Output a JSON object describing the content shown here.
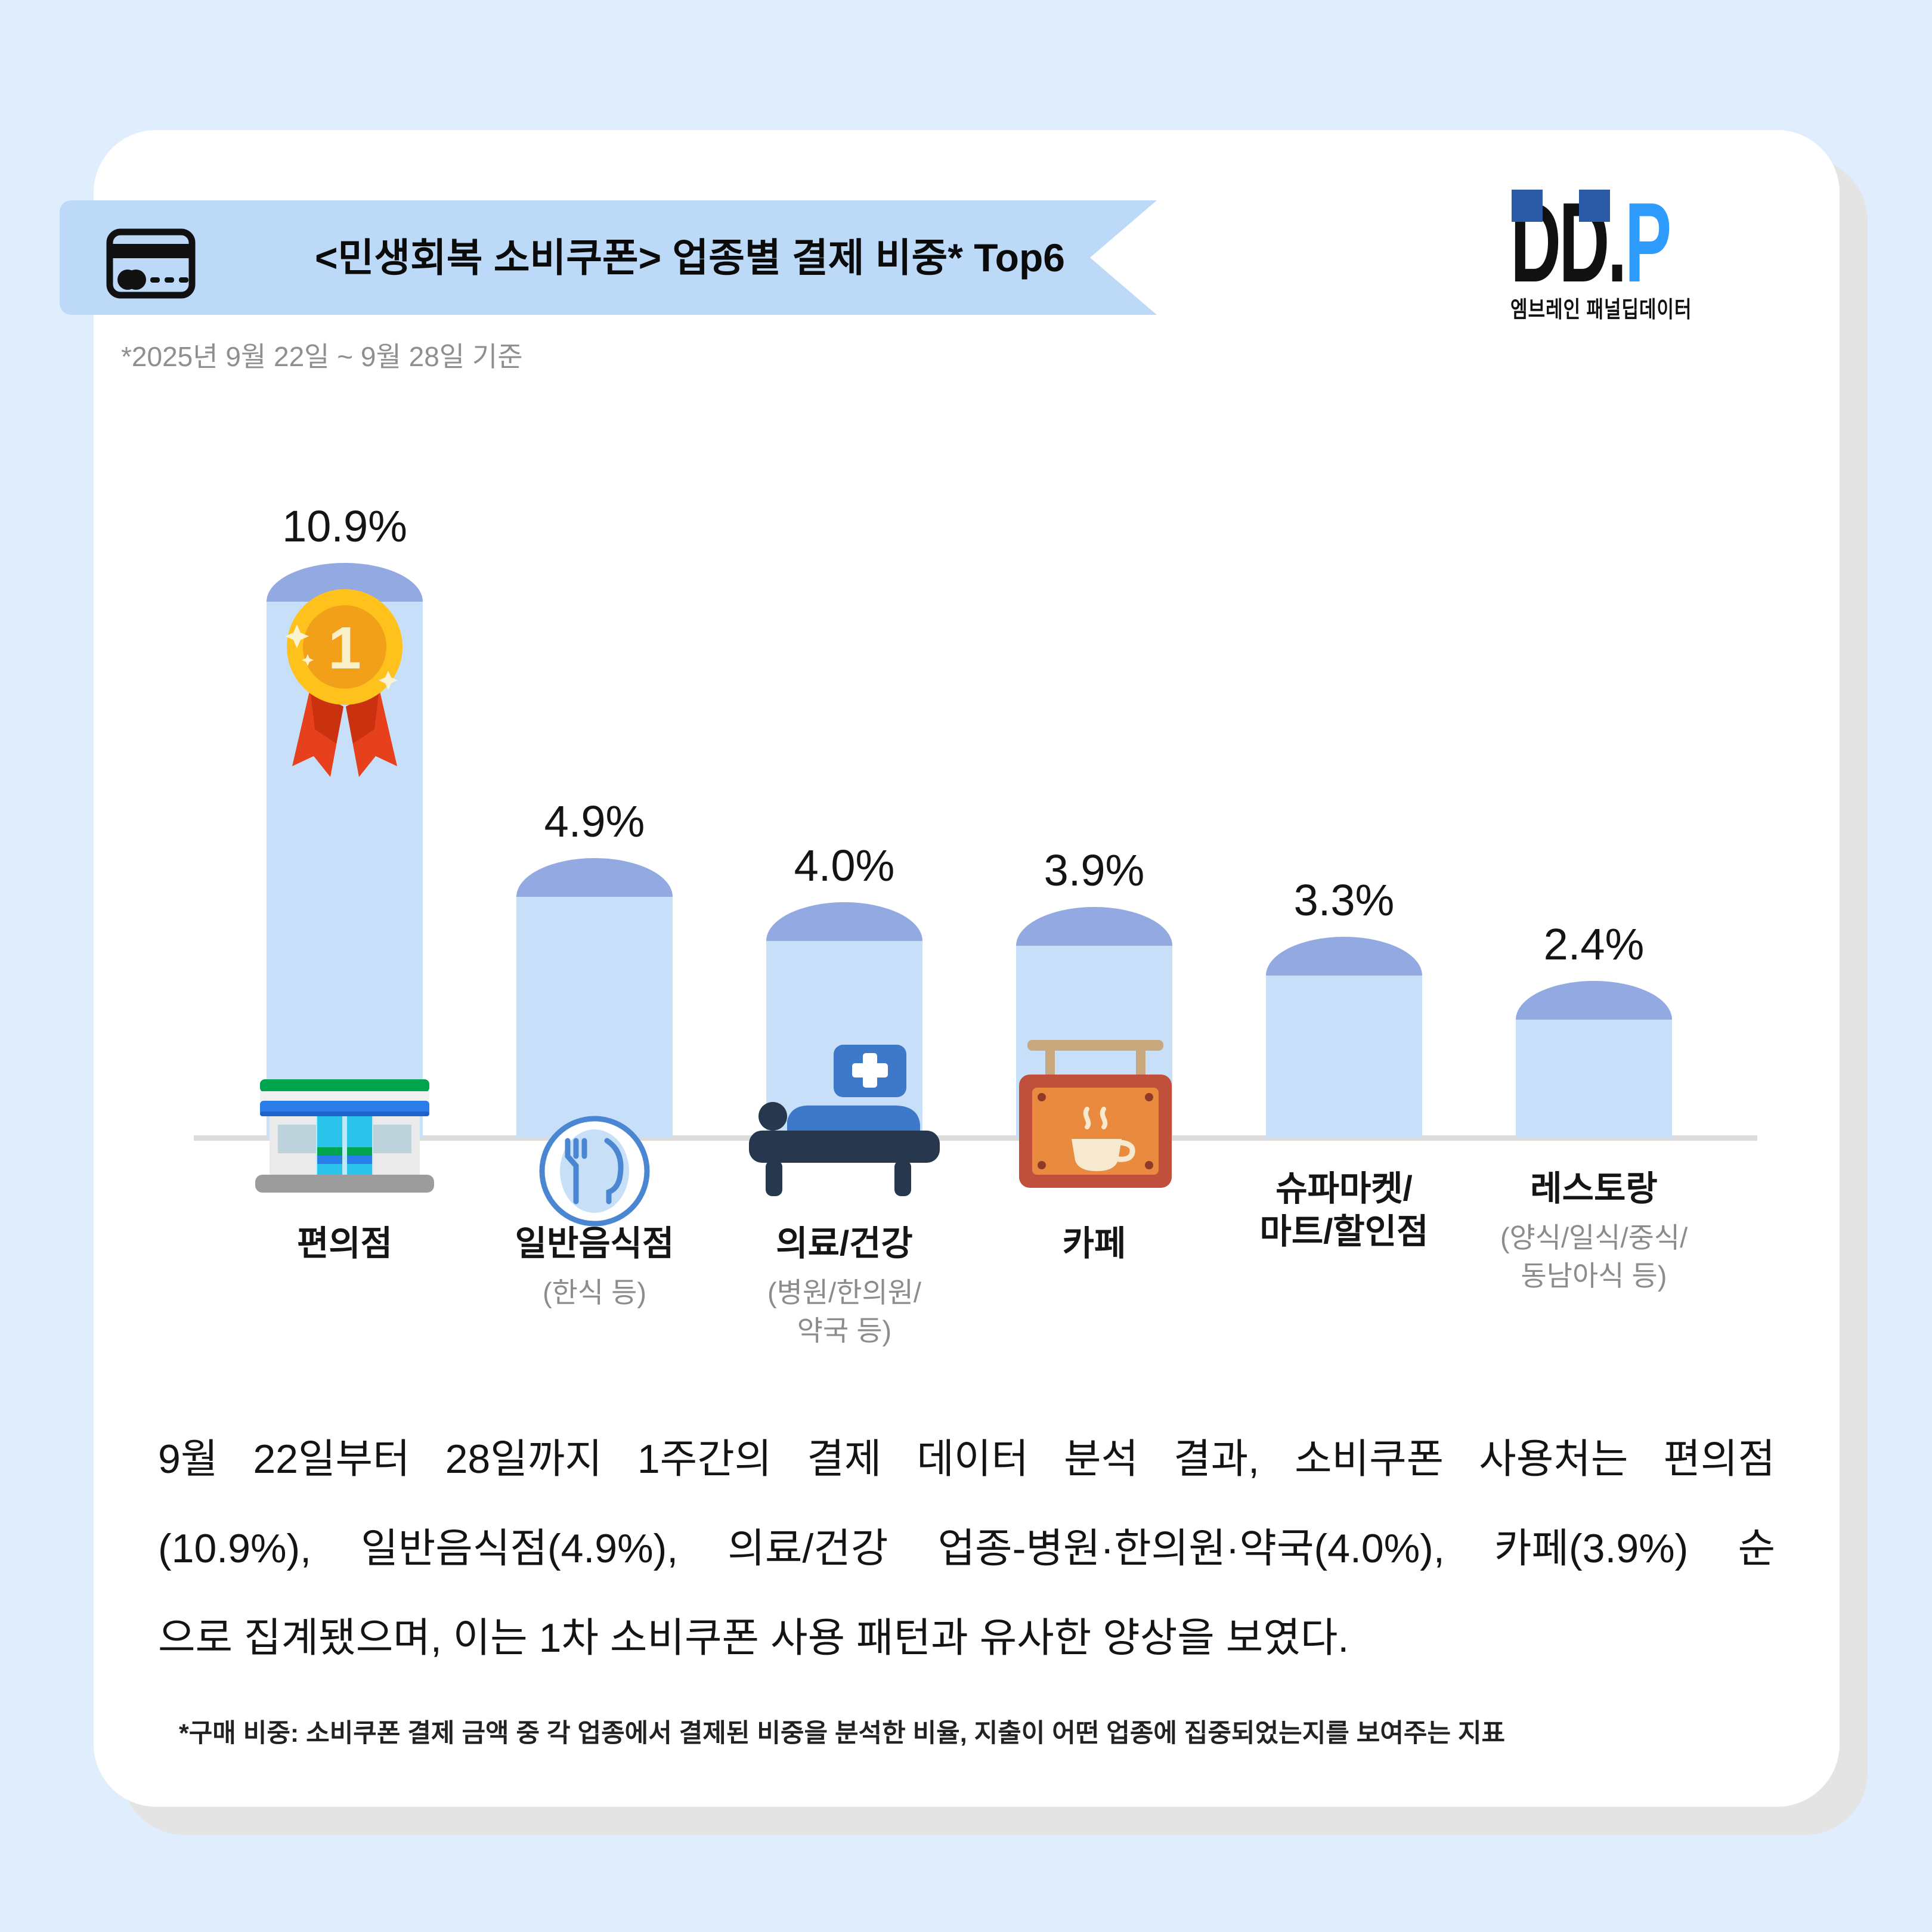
{
  "page": {
    "background_color": "#DFEDFC",
    "card_color": "#FFFFFF"
  },
  "header": {
    "banner_title": "<민생회복 소비쿠폰> 업종별 결제 비중* Top6",
    "banner_color": "#BCD9F8",
    "banner_icon": "credit-card-icon",
    "subtitle": "*2025년 9월 22일 ~ 9월 28일 기준"
  },
  "logo": {
    "text_dd": "DD",
    "text_dot": ".",
    "text_p": "P",
    "subtext": "엠브레인 패널딥데이터",
    "p_color": "#2E9BFF",
    "accent_color": "#2B5AA7"
  },
  "chart_data": {
    "type": "bar",
    "title": "<민생회복 소비쿠폰> 업종별 결제 비중 Top6",
    "unit": "%",
    "ylim": [
      0,
      11
    ],
    "grid": false,
    "legend": "none",
    "categories": [
      "편의점",
      "일반음식점",
      "의료/건강",
      "카페",
      "슈파마켓/마트/할인점",
      "레스토랑"
    ],
    "values": [
      10.9,
      4.9,
      4.0,
      3.9,
      3.3,
      2.4
    ],
    "bars": [
      {
        "label_lines": [
          "편의점"
        ],
        "sub_lines": [],
        "value": 10.9,
        "display": "10.9%",
        "icon": "convenience-store-icon",
        "medal": true
      },
      {
        "label_lines": [
          "일반음식점"
        ],
        "sub_lines": [
          "(한식 등)"
        ],
        "value": 4.9,
        "display": "4.9%",
        "icon": "restaurant-plate-icon",
        "medal": false
      },
      {
        "label_lines": [
          "의료/건강"
        ],
        "sub_lines": [
          "(병원/한의원/",
          "약국 등)"
        ],
        "value": 4.0,
        "display": "4.0%",
        "icon": "hospital-bed-icon",
        "medal": false
      },
      {
        "label_lines": [
          "카페"
        ],
        "sub_lines": [],
        "value": 3.9,
        "display": "3.9%",
        "icon": "cafe-sign-icon",
        "medal": false
      },
      {
        "label_lines": [
          "슈파마켓/",
          "마트/할인점"
        ],
        "sub_lines": [],
        "value": 3.3,
        "display": "3.3%",
        "icon": null,
        "medal": false
      },
      {
        "label_lines": [
          "레스토랑"
        ],
        "sub_lines": [
          "(양식/일식/중식/",
          "동남아식 등)"
        ],
        "value": 2.4,
        "display": "2.4%",
        "icon": null,
        "medal": false
      }
    ],
    "medal_text": "1",
    "bar_body_color": "#C7DFF9",
    "bar_top_color": "#93A9E2",
    "baseline_color": "#DCDCDC"
  },
  "body": {
    "paragraph_lines": [
      "9월 22일부터 28일까지 1주간의 결제 데이터 분석 결과, 소비쿠폰 사용처는 편의점",
      "(10.9%), 일반음식점(4.9%), 의료/건강 업종-병원·한의원·약국(4.0%), 카페(3.9%) 순",
      "으로 집계됐으며, 이는 1차 소비쿠폰 사용 패턴과 유사한 양상을 보였다."
    ],
    "footnote": "*구매 비중: 소비쿠폰 결제 금액 중 각 업종에서 결제된 비중을 분석한 비율, 지출이 어떤 업종에 집중되었는지를 보여주는 지표"
  }
}
